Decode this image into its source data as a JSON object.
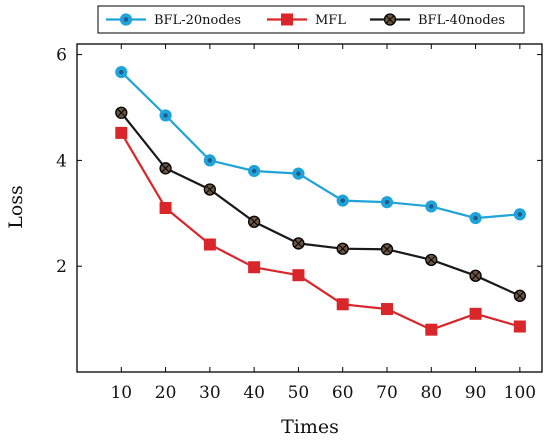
{
  "chart_data": {
    "type": "line",
    "title": "",
    "xlabel": "Times",
    "ylabel": "Loss",
    "x": [
      10,
      20,
      30,
      40,
      50,
      60,
      70,
      80,
      90,
      100
    ],
    "x_ticks": [
      "10",
      "20",
      "30",
      "40",
      "50",
      "60",
      "70",
      "80",
      "90",
      "100"
    ],
    "y_ticks": [
      "2",
      "4",
      "6"
    ],
    "xlim": [
      0,
      105
    ],
    "ylim": [
      0,
      6.2
    ],
    "grid": false,
    "legend_position": "top-center",
    "series": [
      {
        "name": "BFL-20nodes",
        "color": "#1fa3d8",
        "marker": "circle",
        "values": [
          5.67,
          4.85,
          4.0,
          3.8,
          3.75,
          3.24,
          3.21,
          3.13,
          2.91,
          2.98
        ]
      },
      {
        "name": "MFL",
        "color": "#d9262b",
        "marker": "square",
        "values": [
          4.52,
          3.1,
          2.41,
          1.98,
          1.83,
          1.28,
          1.19,
          0.8,
          1.1,
          0.86
        ]
      },
      {
        "name": "BFL-40nodes",
        "color": "#1a1a1a",
        "marker": "circle-cross",
        "values": [
          4.9,
          3.85,
          3.45,
          2.84,
          2.43,
          2.33,
          2.32,
          2.12,
          1.82,
          1.44
        ]
      }
    ]
  }
}
